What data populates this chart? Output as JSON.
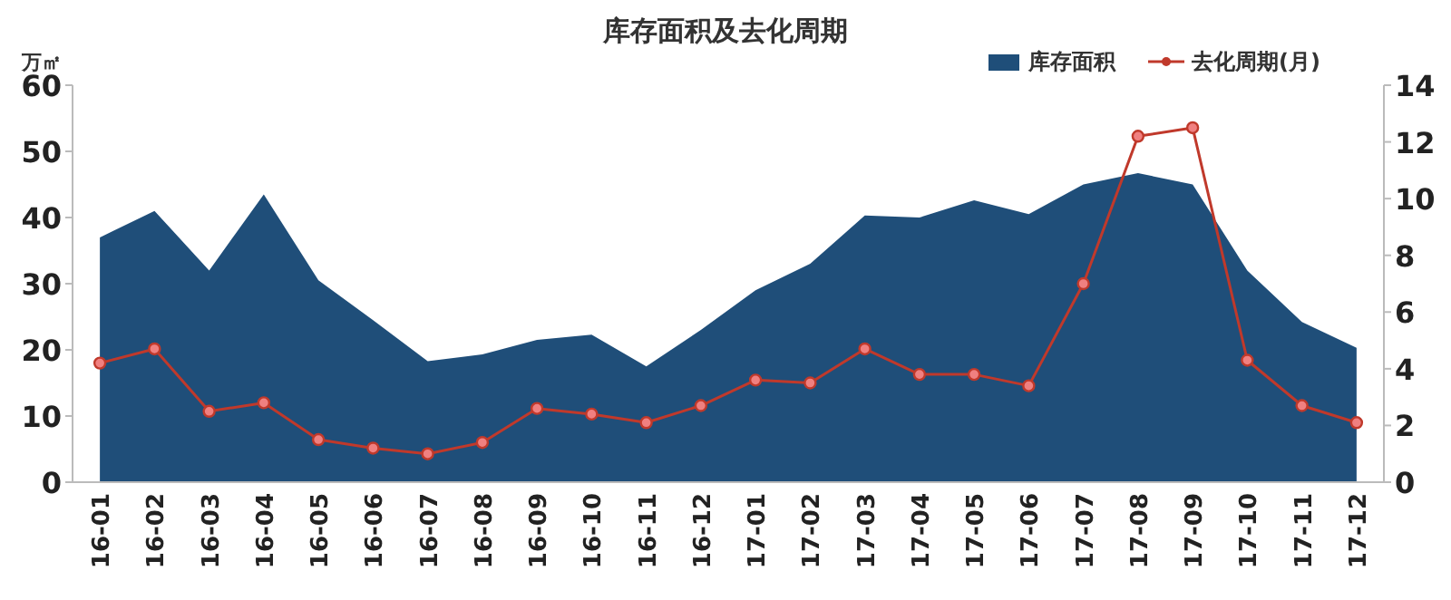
{
  "chart_data": {
    "type": "area",
    "title": "库存面积及去化周期",
    "ylabel": "万㎡",
    "categories": [
      "16-01",
      "16-02",
      "16-03",
      "16-04",
      "16-05",
      "16-06",
      "16-07",
      "16-08",
      "16-09",
      "16-10",
      "16-11",
      "16-12",
      "17-01",
      "17-02",
      "17-03",
      "17-04",
      "17-05",
      "17-06",
      "17-07",
      "17-08",
      "17-09",
      "17-10",
      "17-11",
      "17-12"
    ],
    "series": [
      {
        "name": "库存面积",
        "color": "#1f4e79",
        "values": [
          37,
          41,
          32,
          43.5,
          30.5,
          24.5,
          18.3,
          19.3,
          21.5,
          22.3,
          17.5,
          23,
          29,
          33,
          40.3,
          40,
          42.6,
          40.5,
          45,
          46.7,
          45,
          32,
          24.2,
          20.3
        ]
      },
      {
        "name": "去化周期(月)",
        "type": "line",
        "axis": "y2",
        "color": "#c0392b",
        "marker": "circle",
        "values": [
          4.2,
          4.7,
          2.5,
          2.8,
          1.5,
          1.2,
          1.0,
          1.4,
          2.6,
          2.4,
          2.1,
          2.7,
          3.6,
          3.5,
          4.7,
          3.8,
          3.8,
          3.4,
          7.0,
          12.2,
          12.5,
          4.3,
          2.7,
          2.1
        ]
      }
    ],
    "ylim": [
      0,
      60
    ],
    "yticks": [
      0,
      10,
      20,
      30,
      40,
      50,
      60
    ],
    "y2lim": [
      0,
      14
    ],
    "y2ticks": [
      0,
      2,
      4,
      6,
      8,
      10,
      12,
      14
    ],
    "legend": "top right",
    "grid": false
  }
}
